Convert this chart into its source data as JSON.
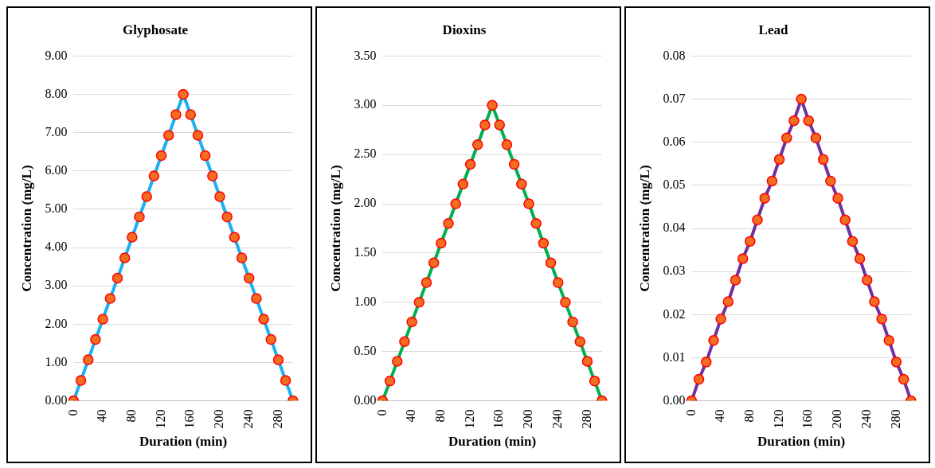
{
  "chart_data": [
    {
      "type": "line",
      "title": "Glyphosate",
      "xlabel": "Duration (min)",
      "ylabel": "Concentration (mg/L)",
      "categories": [
        "0",
        null,
        null,
        null,
        "40",
        null,
        null,
        null,
        "80",
        null,
        null,
        null,
        "120",
        null,
        null,
        null,
        "160",
        null,
        null,
        null,
        "200",
        null,
        null,
        null,
        "240",
        null,
        null,
        null,
        "280",
        null,
        null
      ],
      "series": [
        {
          "color": "#1cb0f0",
          "values": [
            0,
            0.53,
            1.07,
            1.6,
            2.13,
            2.67,
            3.2,
            3.73,
            4.27,
            4.8,
            5.33,
            5.87,
            6.4,
            6.93,
            7.47,
            8,
            7.47,
            6.93,
            6.4,
            5.87,
            5.33,
            4.8,
            4.27,
            3.73,
            3.2,
            2.67,
            2.13,
            1.6,
            1.07,
            0.53,
            0
          ]
        }
      ],
      "ylim": [
        0,
        9
      ],
      "yticks": [
        {
          "value": 0,
          "label": "0.00"
        },
        {
          "value": 1,
          "label": "1.00"
        },
        {
          "value": 2,
          "label": "2.00"
        },
        {
          "value": 3,
          "label": "3.00"
        },
        {
          "value": 4,
          "label": "4.00"
        },
        {
          "value": 5,
          "label": "5.00"
        },
        {
          "value": 6,
          "label": "6.00"
        },
        {
          "value": 7,
          "label": "7.00"
        },
        {
          "value": 8,
          "label": "8.00"
        },
        {
          "value": 9,
          "label": "9.00"
        }
      ],
      "grid": "y",
      "legend": false,
      "marker": "circle",
      "line_style": "solid"
    },
    {
      "type": "line",
      "title": "Dioxins",
      "xlabel": "Duration (min)",
      "ylabel": "Concentration (mg/L)",
      "categories": [
        "0",
        null,
        null,
        null,
        "40",
        null,
        null,
        null,
        "80",
        null,
        null,
        null,
        "120",
        null,
        null,
        null,
        "160",
        null,
        null,
        null,
        "200",
        null,
        null,
        null,
        "240",
        null,
        null,
        null,
        "280",
        null,
        null
      ],
      "series": [
        {
          "color": "#00b050",
          "values": [
            0,
            0.2,
            0.4,
            0.6,
            0.8,
            1,
            1.2,
            1.4,
            1.6,
            1.8,
            2,
            2.2,
            2.4,
            2.6,
            2.8,
            3,
            2.8,
            2.6,
            2.4,
            2.2,
            2,
            1.8,
            1.6,
            1.4,
            1.2,
            1,
            0.8,
            0.6,
            0.4,
            0.2,
            0
          ]
        }
      ],
      "ylim": [
        0,
        3.5
      ],
      "yticks": [
        {
          "value": 0,
          "label": "0.00"
        },
        {
          "value": 0.5,
          "label": "0.50"
        },
        {
          "value": 1,
          "label": "1.00"
        },
        {
          "value": 1.5,
          "label": "1.50"
        },
        {
          "value": 2,
          "label": "2.00"
        },
        {
          "value": 2.5,
          "label": "2.50"
        },
        {
          "value": 3,
          "label": "3.00"
        },
        {
          "value": 3.5,
          "label": "3.50"
        }
      ],
      "grid": "y",
      "legend": false,
      "marker": "circle",
      "line_style": "solid"
    },
    {
      "type": "line",
      "title": "Lead",
      "xlabel": "Duration (min)",
      "ylabel": "Concentration (mg/L)",
      "categories": [
        "0",
        null,
        null,
        null,
        "40",
        null,
        null,
        null,
        "80",
        null,
        null,
        null,
        "120",
        null,
        null,
        null,
        "160",
        null,
        null,
        null,
        "200",
        null,
        null,
        null,
        "240",
        null,
        null,
        null,
        "280",
        null,
        null
      ],
      "series": [
        {
          "color": "#7030a0",
          "values": [
            0,
            0.005,
            0.009,
            0.014,
            0.019,
            0.023,
            0.028,
            0.033,
            0.037,
            0.042,
            0.047,
            0.051,
            0.056,
            0.061,
            0.065,
            0.07,
            0.065,
            0.061,
            0.056,
            0.051,
            0.047,
            0.042,
            0.037,
            0.033,
            0.028,
            0.023,
            0.019,
            0.014,
            0.009,
            0.005,
            0
          ]
        }
      ],
      "ylim": [
        0,
        0.08
      ],
      "yticks": [
        {
          "value": 0,
          "label": "0.00"
        },
        {
          "value": 0.01,
          "label": "0.01"
        },
        {
          "value": 0.02,
          "label": "0.02"
        },
        {
          "value": 0.03,
          "label": "0.03"
        },
        {
          "value": 0.04,
          "label": "0.04"
        },
        {
          "value": 0.05,
          "label": "0.05"
        },
        {
          "value": 0.06,
          "label": "0.06"
        },
        {
          "value": 0.07,
          "label": "0.07"
        },
        {
          "value": 0.08,
          "label": "0.08"
        }
      ],
      "grid": "y",
      "legend": false,
      "marker": "circle",
      "line_style": "solid"
    }
  ]
}
